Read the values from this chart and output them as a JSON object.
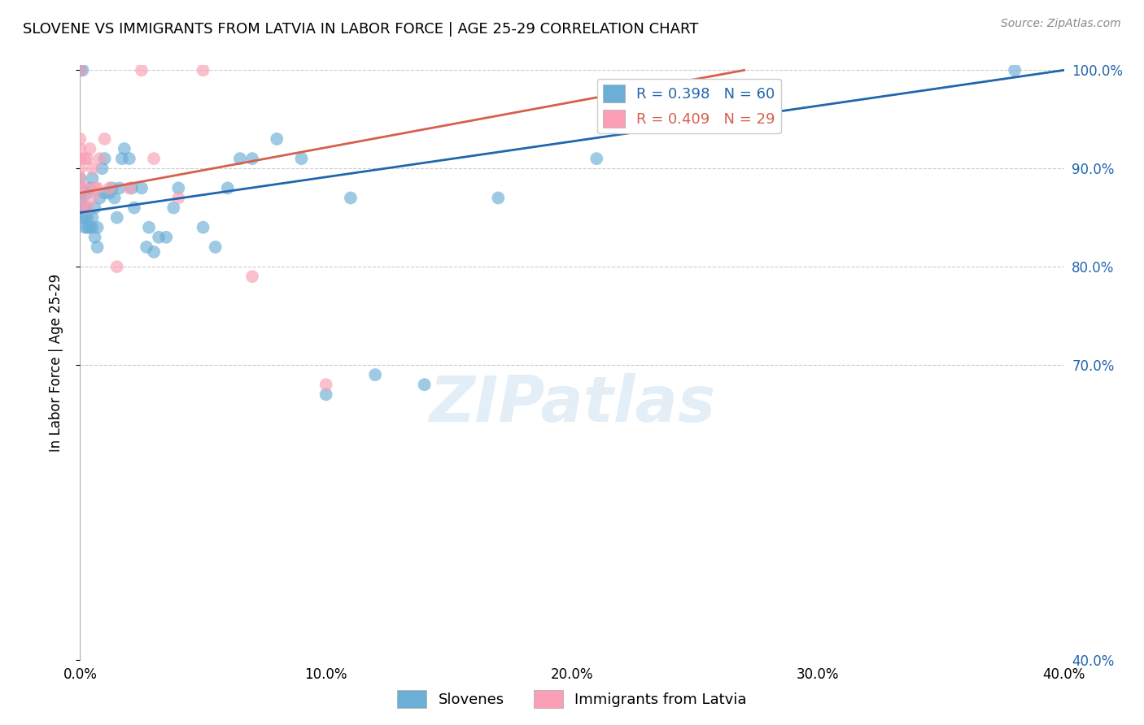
{
  "title": "SLOVENE VS IMMIGRANTS FROM LATVIA IN LABOR FORCE | AGE 25-29 CORRELATION CHART",
  "source": "Source: ZipAtlas.com",
  "ylabel": "In Labor Force | Age 25-29",
  "xlim": [
    0.0,
    0.4
  ],
  "ylim": [
    0.4,
    1.005
  ],
  "blue_label": "Slovenes",
  "pink_label": "Immigrants from Latvia",
  "blue_R": 0.398,
  "blue_N": 60,
  "pink_R": 0.409,
  "pink_N": 29,
  "blue_color": "#6baed6",
  "pink_color": "#fa9fb5",
  "blue_line_color": "#2166ac",
  "pink_line_color": "#d6604d",
  "watermark": "ZIPatlas",
  "blue_x": [
    0.0,
    0.0,
    0.0,
    0.0,
    0.0,
    0.001,
    0.001,
    0.001,
    0.001,
    0.002,
    0.002,
    0.002,
    0.003,
    0.003,
    0.003,
    0.004,
    0.004,
    0.005,
    0.005,
    0.005,
    0.006,
    0.006,
    0.007,
    0.007,
    0.008,
    0.009,
    0.01,
    0.01,
    0.012,
    0.013,
    0.014,
    0.015,
    0.016,
    0.017,
    0.018,
    0.02,
    0.021,
    0.022,
    0.025,
    0.027,
    0.028,
    0.03,
    0.032,
    0.035,
    0.038,
    0.04,
    0.05,
    0.055,
    0.06,
    0.065,
    0.07,
    0.08,
    0.09,
    0.1,
    0.11,
    0.12,
    0.14,
    0.17,
    0.21,
    0.38
  ],
  "blue_y": [
    0.86,
    0.87,
    0.88,
    0.89,
    1.0,
    0.85,
    0.86,
    0.87,
    1.0,
    0.84,
    0.85,
    0.86,
    0.84,
    0.85,
    0.875,
    0.84,
    0.88,
    0.84,
    0.85,
    0.89,
    0.83,
    0.86,
    0.82,
    0.84,
    0.87,
    0.9,
    0.875,
    0.91,
    0.875,
    0.88,
    0.87,
    0.85,
    0.88,
    0.91,
    0.92,
    0.91,
    0.88,
    0.86,
    0.88,
    0.82,
    0.84,
    0.815,
    0.83,
    0.83,
    0.86,
    0.88,
    0.84,
    0.82,
    0.88,
    0.91,
    0.91,
    0.93,
    0.91,
    0.67,
    0.87,
    0.69,
    0.68,
    0.87,
    0.91,
    1.0
  ],
  "pink_x": [
    0.0,
    0.0,
    0.0,
    0.0,
    0.0,
    0.0,
    0.001,
    0.001,
    0.002,
    0.002,
    0.003,
    0.003,
    0.004,
    0.005,
    0.005,
    0.006,
    0.007,
    0.008,
    0.01,
    0.012,
    0.015,
    0.02,
    0.025,
    0.03,
    0.04,
    0.05,
    0.07,
    0.1,
    0.0
  ],
  "pink_y": [
    0.88,
    0.89,
    0.9,
    0.91,
    0.92,
    0.93,
    0.86,
    0.87,
    0.88,
    0.91,
    0.86,
    0.91,
    0.92,
    0.87,
    0.9,
    0.88,
    0.88,
    0.91,
    0.93,
    0.88,
    0.8,
    0.88,
    1.0,
    0.91,
    0.87,
    1.0,
    0.79,
    0.68,
    1.0
  ],
  "yticks": [
    0.4,
    0.7,
    0.8,
    0.9,
    1.0
  ],
  "xticks": [
    0.0,
    0.1,
    0.2,
    0.3,
    0.4
  ]
}
